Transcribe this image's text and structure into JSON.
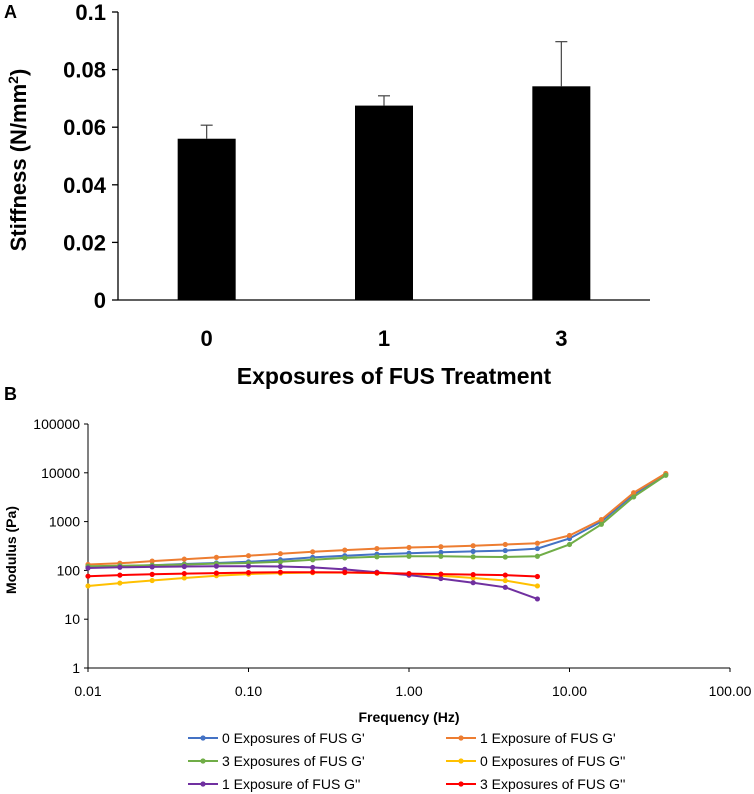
{
  "chart_data": [
    {
      "type": "bar",
      "panel_label": "A",
      "title": "",
      "xlabel": "Exposures of FUS Treatment",
      "ylabel": "Stiffness (N/mm",
      "ylabel_sup": "2",
      "ylabel_close": ")",
      "categories": [
        "0",
        "1",
        "3"
      ],
      "values": [
        0.056,
        0.0675,
        0.0742
      ],
      "errors": [
        0.0047,
        0.0034,
        0.0155
      ],
      "ylim": [
        0,
        0.1
      ],
      "yticks": [
        0,
        0.02,
        0.04,
        0.06,
        0.08,
        0.1
      ],
      "ytick_labels": [
        "0",
        "0.02",
        "0.04",
        "0.06",
        "0.08",
        "0.1"
      ],
      "bar_color": "#000000",
      "grid": false
    },
    {
      "type": "line",
      "panel_label": "B",
      "title": "",
      "xlabel": "Frequency (Hz)",
      "ylabel": "Modulus (Pa)",
      "xscale": "log",
      "yscale": "log",
      "xlim": [
        0.01,
        100
      ],
      "ylim": [
        1,
        100000
      ],
      "xticks": [
        0.01,
        0.1,
        1,
        10,
        100
      ],
      "xtick_labels": [
        "0.01",
        "0.10",
        "1.00",
        "10.00",
        "100.00"
      ],
      "yticks": [
        1,
        10,
        100,
        1000,
        10000,
        100000
      ],
      "ytick_labels": [
        "1",
        "10",
        "100",
        "1000",
        "10000",
        "100000"
      ],
      "legend_position": "bottom",
      "series": [
        {
          "name": "0 Exposures of FUS G'",
          "color": "#4472C4",
          "x": [
            0.01,
            0.0158,
            0.0251,
            0.0398,
            0.0631,
            0.1,
            0.158,
            0.251,
            0.398,
            0.631,
            1,
            1.58,
            2.51,
            3.98,
            6.31,
            10,
            15.8,
            25.1,
            39.8
          ],
          "y": [
            118,
            122,
            128,
            135,
            142,
            150,
            165,
            185,
            200,
            215,
            225,
            235,
            245,
            255,
            280,
            450,
            1000,
            3600,
            9300
          ]
        },
        {
          "name": "1 Exposure of FUS G'",
          "color": "#ED7D31",
          "x": [
            0.01,
            0.0158,
            0.0251,
            0.0398,
            0.0631,
            0.1,
            0.158,
            0.251,
            0.398,
            0.631,
            1,
            1.58,
            2.51,
            3.98,
            6.31,
            10,
            15.8,
            25.1,
            39.8
          ],
          "y": [
            132,
            140,
            155,
            170,
            185,
            200,
            220,
            240,
            260,
            280,
            295,
            305,
            320,
            340,
            360,
            520,
            1100,
            3900,
            9700
          ]
        },
        {
          "name": "3 Exposures of FUS G'",
          "color": "#70AD47",
          "x": [
            0.01,
            0.0158,
            0.0251,
            0.0398,
            0.0631,
            0.1,
            0.158,
            0.251,
            0.398,
            0.631,
            1,
            1.58,
            2.51,
            3.98,
            6.31,
            10,
            15.8,
            25.1,
            39.8
          ],
          "y": [
            122,
            125,
            128,
            132,
            138,
            142,
            150,
            165,
            180,
            190,
            195,
            195,
            190,
            188,
            195,
            340,
            880,
            3200,
            8900
          ]
        },
        {
          "name": "0 Exposures of FUS G''",
          "color": "#FFC000",
          "x": [
            0.01,
            0.0158,
            0.0251,
            0.0398,
            0.0631,
            0.1,
            0.158,
            0.251,
            0.398,
            0.631,
            1,
            1.58,
            2.51,
            3.98,
            6.31
          ],
          "y": [
            48,
            55,
            62,
            70,
            78,
            84,
            88,
            90,
            90,
            88,
            85,
            78,
            70,
            62,
            48
          ]
        },
        {
          "name": "1 Exposure of FUS G''",
          "color": "#7030A0",
          "x": [
            0.01,
            0.0158,
            0.0251,
            0.0398,
            0.0631,
            0.1,
            0.158,
            0.251,
            0.398,
            0.631,
            1,
            1.58,
            2.51,
            3.98,
            6.31
          ],
          "y": [
            112,
            116,
            118,
            120,
            122,
            122,
            120,
            115,
            105,
            92,
            80,
            68,
            56,
            45,
            26
          ]
        },
        {
          "name": "3 Exposures of FUS G''",
          "color": "#FF0000",
          "x": [
            0.01,
            0.0158,
            0.0251,
            0.0398,
            0.0631,
            0.1,
            0.158,
            0.251,
            0.398,
            0.631,
            1,
            1.58,
            2.51,
            3.98,
            6.31
          ],
          "y": [
            76,
            80,
            83,
            86,
            88,
            90,
            92,
            92,
            91,
            89,
            86,
            84,
            82,
            80,
            75
          ]
        }
      ]
    }
  ]
}
